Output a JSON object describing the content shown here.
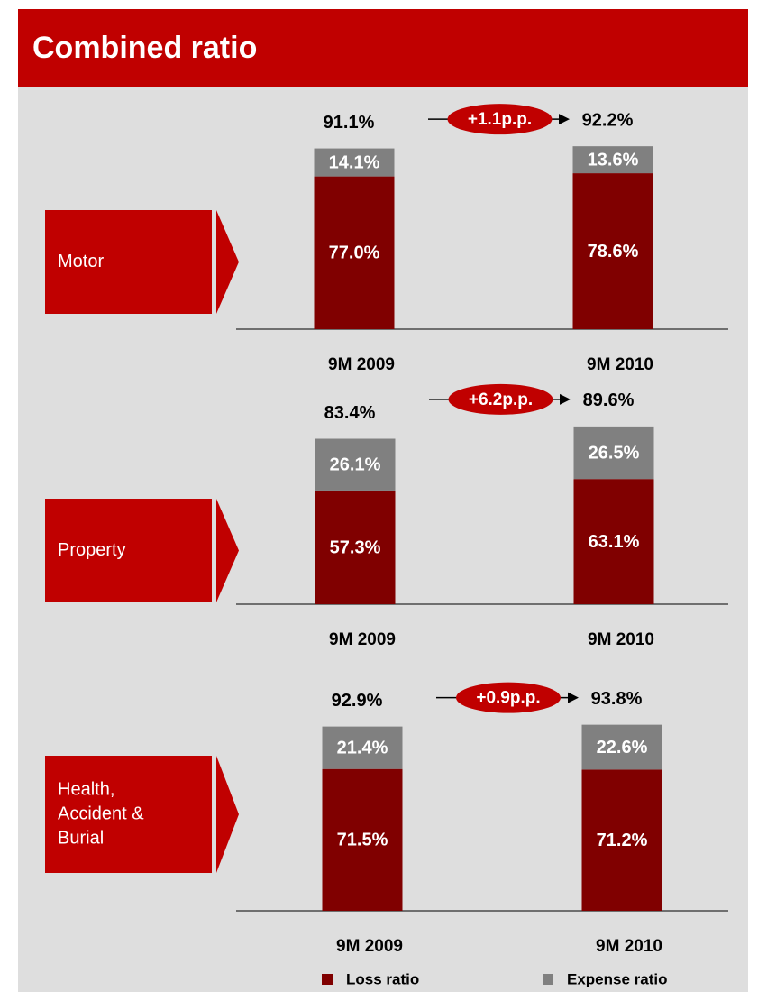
{
  "title": "Combined ratio",
  "chart_data": [
    {
      "type": "stacked-bar",
      "label": [
        "Motor"
      ],
      "categories": [
        "9M 2009",
        "9M 2010"
      ],
      "series": [
        {
          "name": "Loss ratio",
          "color": "#800000",
          "values": [
            77.0,
            78.6
          ],
          "value_labels": [
            "77.0%",
            "78.6%"
          ]
        },
        {
          "name": "Expense ratio",
          "color": "#808080",
          "values": [
            14.1,
            13.6
          ],
          "value_labels": [
            "14.1%",
            "13.6%"
          ]
        }
      ],
      "totals": [
        91.1,
        92.2
      ],
      "total_labels": [
        "91.1%",
        "92.2%"
      ],
      "change": "+1.1p.p."
    },
    {
      "type": "stacked-bar",
      "label": [
        "Property"
      ],
      "categories": [
        "9M 2009",
        "9M 2010"
      ],
      "series": [
        {
          "name": "Loss ratio",
          "color": "#800000",
          "values": [
            57.3,
            63.1
          ],
          "value_labels": [
            "57.3%",
            "63.1%"
          ]
        },
        {
          "name": "Expense ratio",
          "color": "#808080",
          "values": [
            26.1,
            26.5
          ],
          "value_labels": [
            "26.1%",
            "26.5%"
          ]
        }
      ],
      "totals": [
        83.4,
        89.6
      ],
      "total_labels": [
        "83.4%",
        "89.6%"
      ],
      "change": "+6.2p.p."
    },
    {
      "type": "stacked-bar",
      "label": [
        "Health,",
        "Accident &",
        "Burial"
      ],
      "categories": [
        "9M 2009",
        "9M 2010"
      ],
      "series": [
        {
          "name": "Loss ratio",
          "color": "#800000",
          "values": [
            71.5,
            71.2
          ],
          "value_labels": [
            "71.5%",
            "71.2%"
          ]
        },
        {
          "name": "Expense ratio",
          "color": "#808080",
          "values": [
            21.4,
            22.6
          ],
          "value_labels": [
            "21.4%",
            "22.6%"
          ]
        }
      ],
      "totals": [
        92.9,
        93.8
      ],
      "total_labels": [
        "92.9%",
        "93.8%"
      ],
      "change": "+0.9p.p."
    }
  ]
}
